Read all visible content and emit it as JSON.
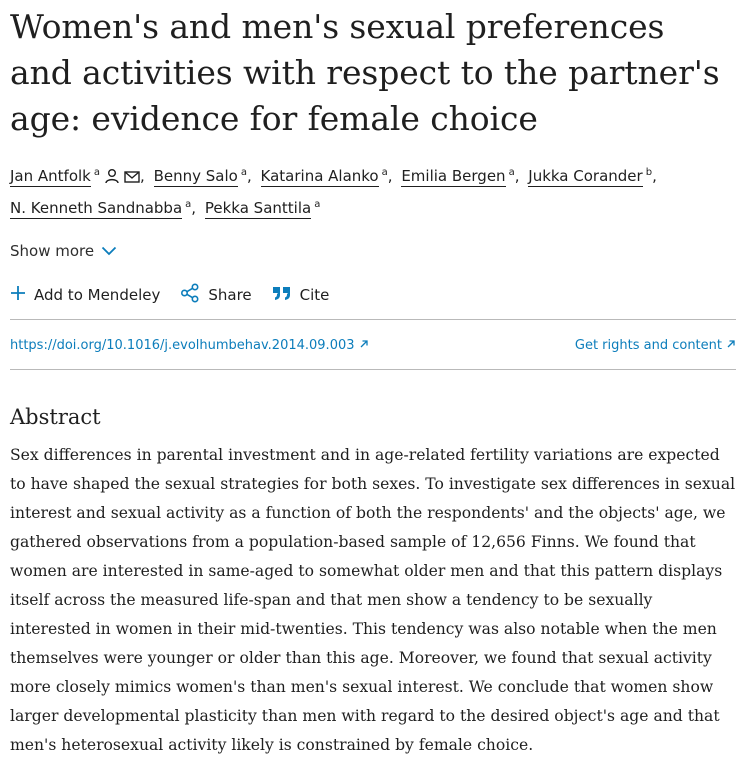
{
  "article": {
    "title": "Women's and men's sexual preferences and activities with respect to the partner's age: evidence for female choice"
  },
  "authors": [
    {
      "name": "Jan Antfolk",
      "aff": "a",
      "icons": [
        "person-icon",
        "mail-icon"
      ]
    },
    {
      "name": "Benny Salo",
      "aff": "a"
    },
    {
      "name": "Katarina Alanko",
      "aff": "a"
    },
    {
      "name": "Emilia Bergen",
      "aff": "a"
    },
    {
      "name": "Jukka Corander",
      "aff": "b"
    },
    {
      "name": "N. Kenneth Sandnabba",
      "aff": "a"
    },
    {
      "name": "Pekka Santtila",
      "aff": "a"
    }
  ],
  "show_more": {
    "label": "Show more"
  },
  "actions": {
    "mendeley": "Add to Mendeley",
    "share": "Share",
    "cite": "Cite"
  },
  "links": {
    "doi": "https://doi.org/10.1016/j.evolhumbehav.2014.09.003",
    "rights": "Get rights and content"
  },
  "abstract": {
    "heading": "Abstract",
    "text": "Sex differences in parental investment and in age-related fertility variations are expected to have shaped the sexual strategies for both sexes. To investigate sex differences in sexual interest and sexual activity as a function of both the respondents' and the objects' age, we gathered observations from a population-based sample of 12,656 Finns. We found that women are interested in same-aged to somewhat older men and that this pattern displays itself across the measured life-span and that men show a tendency to be sexually interested in women in their mid-twenties. This tendency was also notable when the men themselves were younger or older than this age. Moreover, we found that sexual activity more closely mimics women's than men's sexual interest. We conclude that women show larger developmental plasticity than men with regard to the desired object's age and that men's heterosexual activity likely is constrained by female choice."
  },
  "colors": {
    "link": "#0c7dbb",
    "text": "#1f1f1f",
    "divider": "#b9b9b9"
  }
}
